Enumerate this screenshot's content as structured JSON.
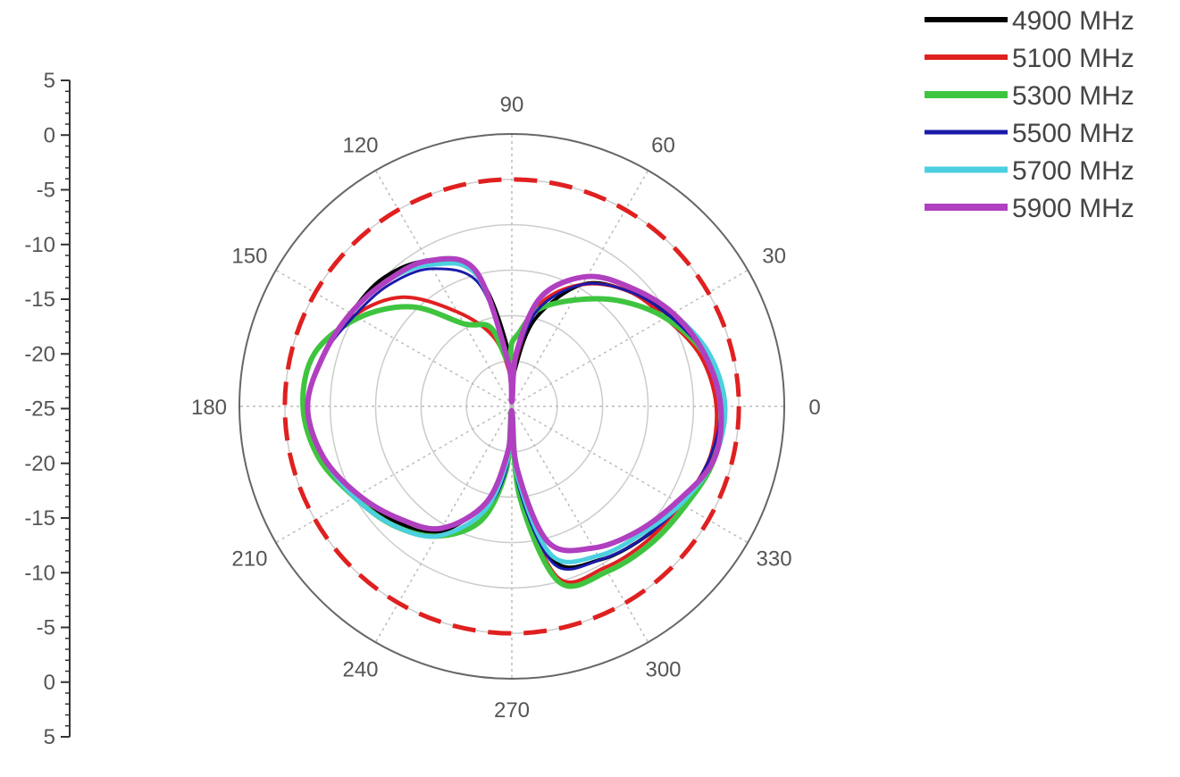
{
  "chart_data": {
    "type": "line",
    "subtype": "polar",
    "angle_unit": "degrees",
    "radial_axis": {
      "ticks": [
        "5",
        "0",
        "-5",
        "-10",
        "-15",
        "-20",
        "-25",
        "-20",
        "-15",
        "-10",
        "-5",
        "0",
        "5"
      ],
      "range": [
        -25,
        5
      ]
    },
    "angle_labels": [
      "0",
      "30",
      "60",
      "90",
      "120",
      "150",
      "180",
      "210",
      "240",
      "270",
      "300",
      "330"
    ],
    "grid": true,
    "legend_position": "top-right",
    "reference_circle": {
      "value": 0,
      "style": "dashed",
      "color": "#e02020"
    },
    "series": [
      {
        "name": "4900 MHz",
        "color": "#000000",
        "theta": [
          0,
          15,
          30,
          45,
          60,
          75,
          85,
          90,
          95,
          105,
          120,
          135,
          150,
          165,
          180,
          195,
          210,
          225,
          240,
          255,
          265,
          270,
          275,
          285,
          300,
          315,
          330,
          345
        ],
        "values": [
          -2.0,
          -3.0,
          -5.0,
          -7.0,
          -9.5,
          -15,
          -21,
          -24.5,
          -18,
          -10,
          -6.5,
          -5.0,
          -4.5,
          -3.5,
          -2.5,
          -3.5,
          -5.0,
          -7.0,
          -9.0,
          -14,
          -19,
          -24.5,
          -18,
          -7.5,
          -5.5,
          -4.5,
          -3.5,
          -2.5
        ]
      },
      {
        "name": "5100 MHz",
        "color": "#e02020",
        "theta": [
          0,
          15,
          30,
          45,
          60,
          75,
          85,
          90,
          95,
          105,
          120,
          135,
          150,
          165,
          180,
          195,
          210,
          225,
          240,
          255,
          265,
          270,
          275,
          285,
          300,
          315,
          330,
          345
        ],
        "values": [
          -2.5,
          -3.5,
          -5.5,
          -7.0,
          -9.5,
          -13.5,
          -20,
          -24.5,
          -21,
          -17,
          -13,
          -8.0,
          -5.0,
          -3.5,
          -2.5,
          -3.5,
          -5.0,
          -6.5,
          -8.5,
          -13,
          -19,
          -24.5,
          -16,
          -5.5,
          -4.5,
          -4.0,
          -3.5,
          -2.5
        ]
      },
      {
        "name": "5300 MHz",
        "color": "#3fc43f",
        "theta": [
          0,
          15,
          30,
          45,
          60,
          75,
          85,
          90,
          95,
          105,
          120,
          135,
          150,
          165,
          180,
          195,
          210,
          225,
          240,
          255,
          265,
          270,
          275,
          285,
          300,
          315,
          330,
          345
        ],
        "values": [
          -2.0,
          -3.0,
          -5.5,
          -8.5,
          -11.5,
          -14,
          -17,
          -18,
          -20,
          -16,
          -14.5,
          -9.5,
          -5.5,
          -2.5,
          -2.0,
          -3.0,
          -5.0,
          -6.5,
          -8.5,
          -12,
          -18,
          -24.5,
          -15,
          -5.0,
          -4.0,
          -3.5,
          -3.0,
          -2.0
        ]
      },
      {
        "name": "5500 MHz",
        "color": "#1a1aaa",
        "theta": [
          0,
          15,
          30,
          45,
          60,
          75,
          85,
          90,
          95,
          105,
          120,
          135,
          150,
          165,
          180,
          195,
          210,
          225,
          240,
          255,
          265,
          270,
          275,
          285,
          300,
          315,
          330,
          345
        ],
        "values": [
          -2.0,
          -3.0,
          -5.0,
          -7.0,
          -9.5,
          -14,
          -20,
          -24.5,
          -20,
          -11,
          -7.5,
          -6.0,
          -5.0,
          -3.5,
          -2.5,
          -3.5,
          -5.0,
          -6.5,
          -8.5,
          -13,
          -18,
          -24.5,
          -16,
          -7.0,
          -5.5,
          -4.5,
          -3.5,
          -2.5
        ]
      },
      {
        "name": "5700 MHz",
        "color": "#4cd0e0",
        "theta": [
          0,
          15,
          30,
          45,
          60,
          75,
          85,
          90,
          95,
          105,
          120,
          135,
          150,
          165,
          180,
          195,
          210,
          225,
          240,
          255,
          265,
          270,
          275,
          285,
          300,
          315,
          330,
          345
        ],
        "values": [
          -1.5,
          -2.5,
          -4.5,
          -6.5,
          -8.5,
          -12.5,
          -19,
          -24.5,
          -20,
          -10,
          -7.0,
          -5.5,
          -4.5,
          -3.5,
          -2.5,
          -3.5,
          -5.0,
          -6.5,
          -8.5,
          -13,
          -19,
          -24.5,
          -17,
          -8.0,
          -6.0,
          -5.0,
          -3.5,
          -2.0
        ]
      },
      {
        "name": "5900 MHz",
        "color": "#b040c0",
        "theta": [
          0,
          15,
          30,
          45,
          60,
          75,
          85,
          90,
          95,
          105,
          120,
          135,
          150,
          165,
          180,
          195,
          210,
          225,
          240,
          255,
          265,
          270,
          275,
          285,
          300,
          315,
          330,
          345
        ],
        "values": [
          -2.0,
          -3.0,
          -4.5,
          -6.5,
          -8.5,
          -12.5,
          -19,
          -24.5,
          -20,
          -9.5,
          -6.5,
          -5.5,
          -4.5,
          -3.5,
          -2.5,
          -3.5,
          -5.5,
          -7.5,
          -9.5,
          -14,
          -20,
          -24.5,
          -18,
          -9.5,
          -7.0,
          -5.5,
          -4.0,
          -2.0
        ]
      }
    ]
  }
}
